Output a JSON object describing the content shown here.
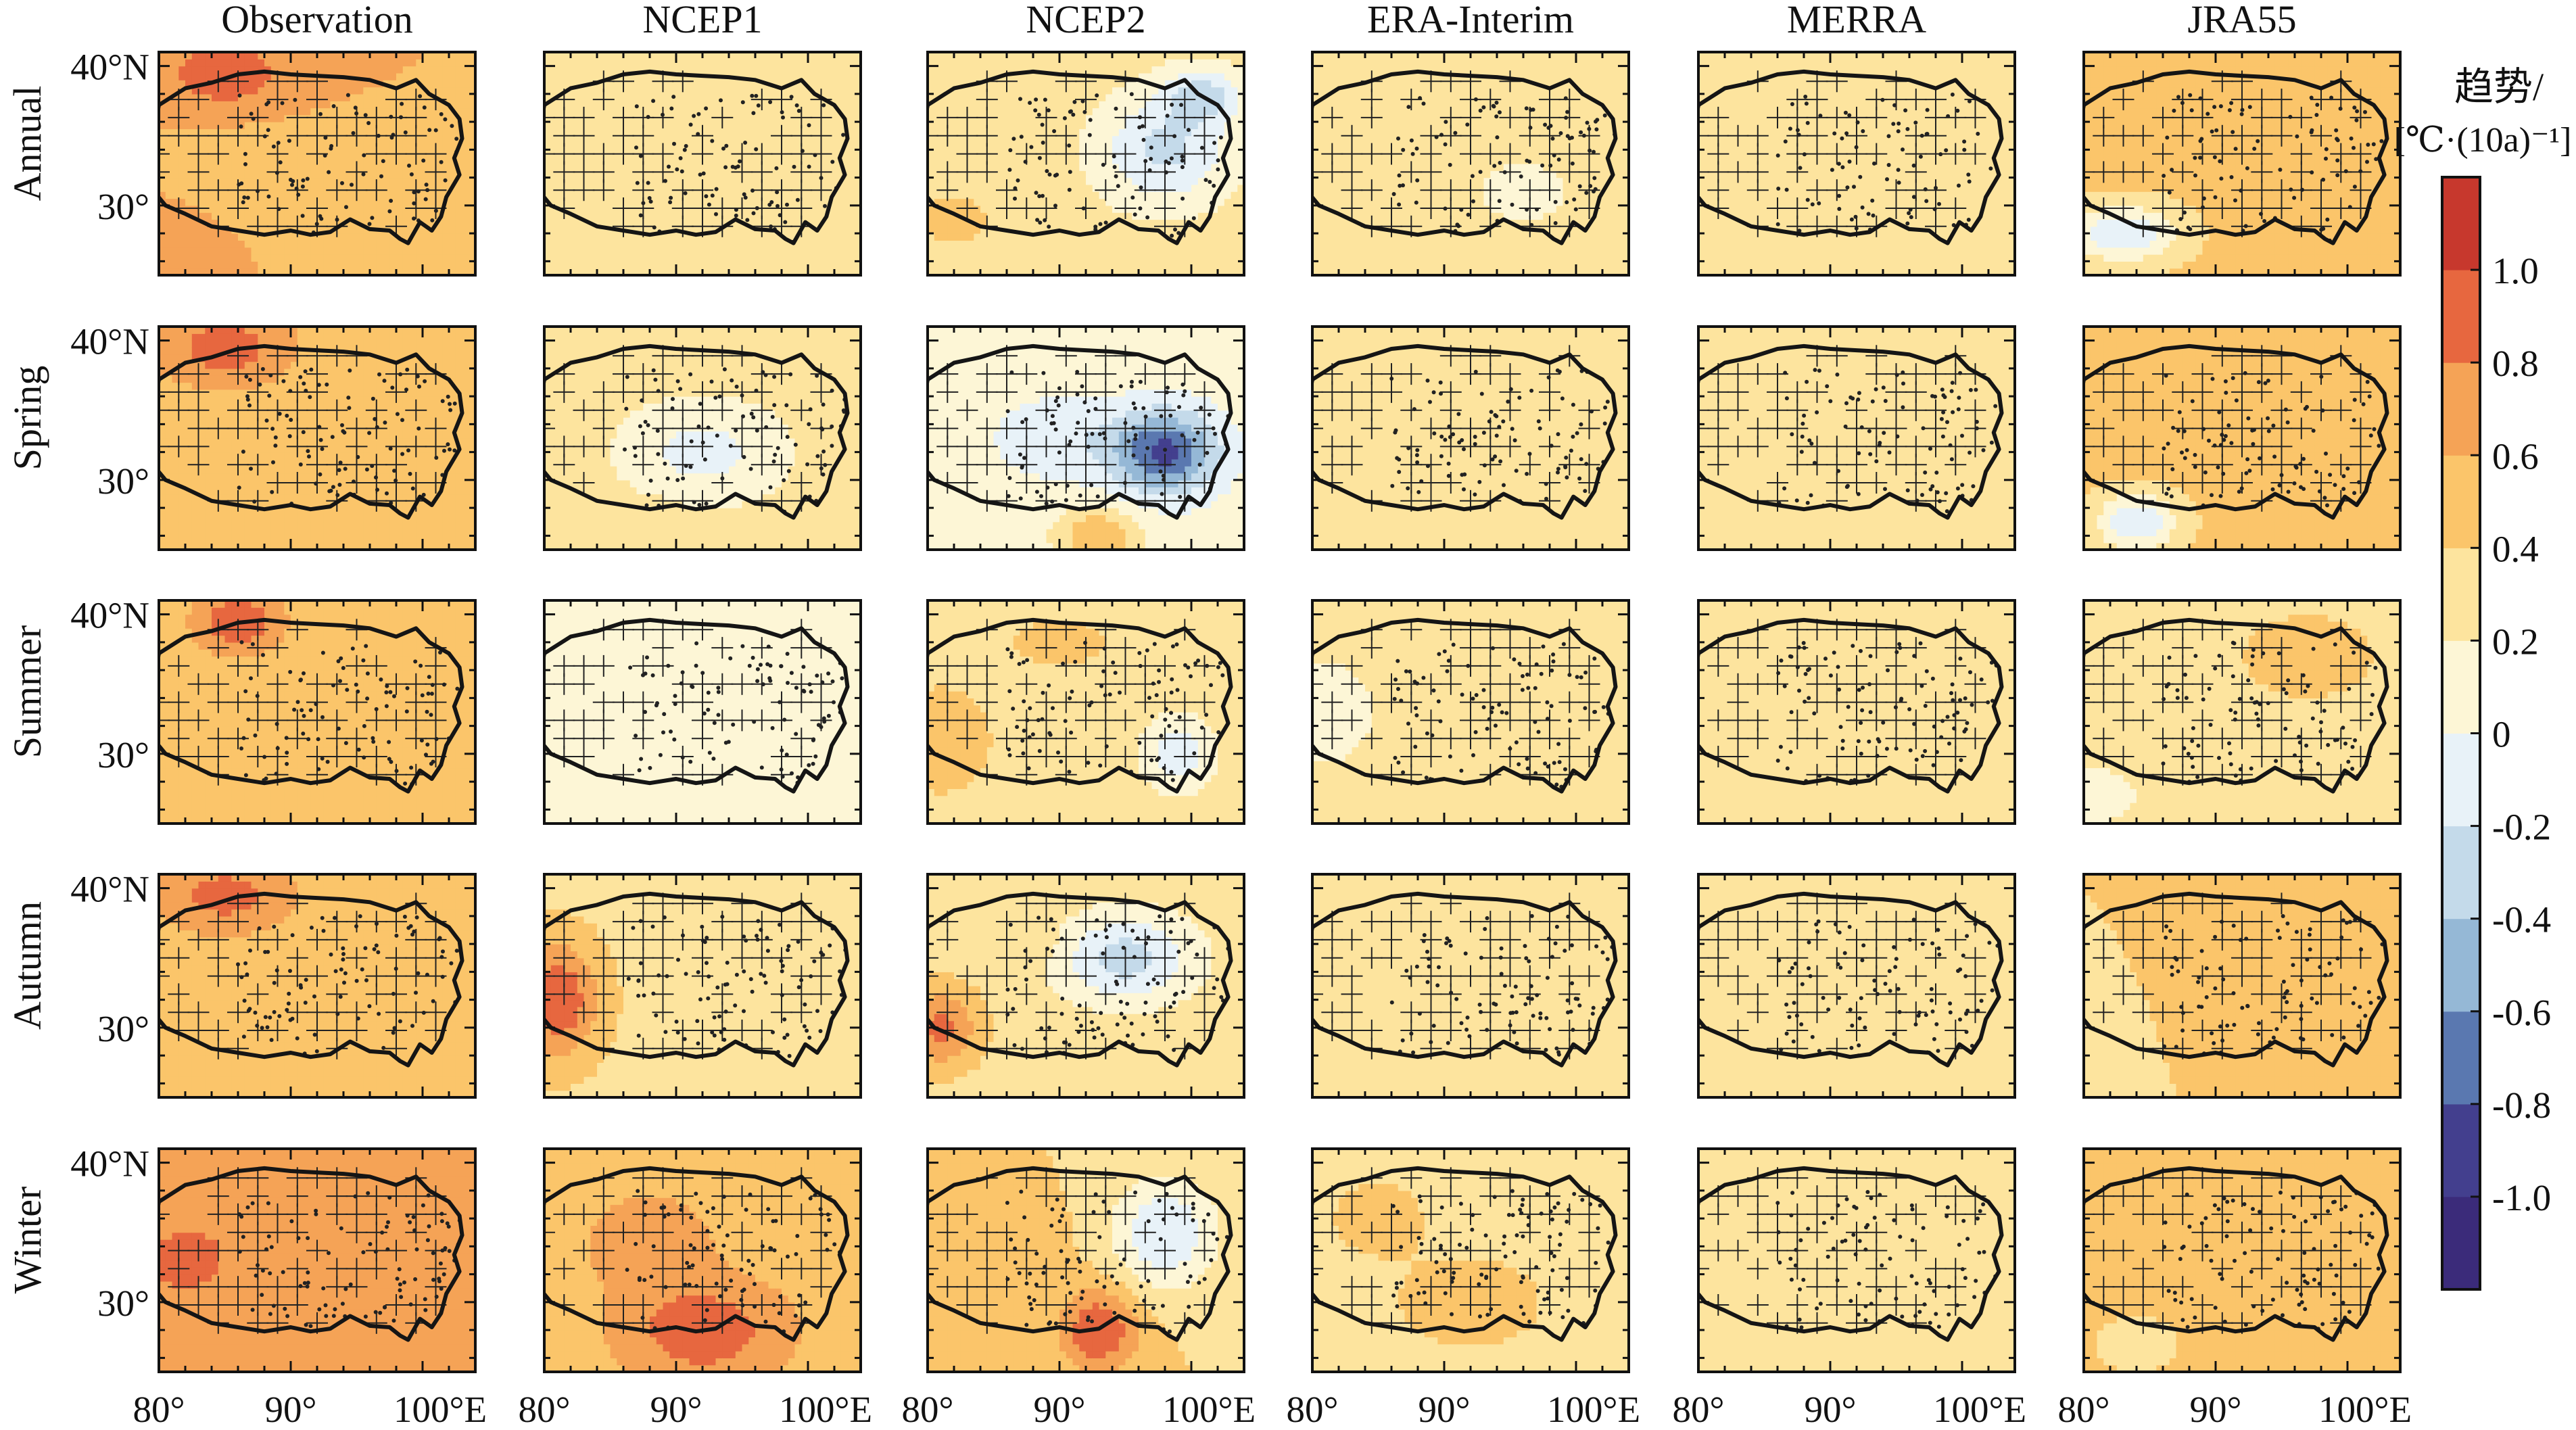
{
  "chart_data": {
    "type": "heatmap",
    "columns": [
      "Observation",
      "NCEP1",
      "NCEP2",
      "ERA-Interim",
      "MERRA",
      "JRA55"
    ],
    "rows": [
      "Annual",
      "Spring",
      "Summer",
      "Autumn",
      "Winter"
    ],
    "x_tick_labels": [
      "80°",
      "90°",
      "100°E"
    ],
    "x_ticks": [
      80,
      90,
      100
    ],
    "y_tick_labels": [
      "40°N",
      "30°"
    ],
    "y_ticks": [
      40,
      30
    ],
    "xlim": [
      80,
      104
    ],
    "ylim": [
      25,
      41
    ],
    "colorbar": {
      "title_line1": "趋势/",
      "title_line2": "[℃·(10a)⁻¹]",
      "tick_labels": [
        "1.0",
        "0.8",
        "0.6",
        "0.4",
        "0.2",
        "0",
        "-0.2",
        "-0.4",
        "-0.6",
        "-0.8",
        "-1.0"
      ],
      "ticks": [
        1.0,
        0.8,
        0.6,
        0.4,
        0.2,
        0,
        -0.2,
        -0.4,
        -0.6,
        -0.8,
        -1.0
      ],
      "range": [
        -1.2,
        1.2
      ],
      "colors": [
        "#3b2b7a",
        "#433f8e",
        "#5a78b0",
        "#95b8d6",
        "#c4daea",
        "#e8f2f8",
        "#fdf6d6",
        "#fde49e",
        "#fbc56a",
        "#f5a356",
        "#e7673f",
        "#c7382d"
      ]
    },
    "panels": [
      [
        {
          "base": 0.6,
          "blobs": [
            [
              85,
              39.5,
              1.0,
              4,
              2.2
            ],
            [
              88,
              33,
              0.55,
              5,
              3
            ],
            [
              80,
              27,
              0.7,
              3,
              2
            ]
          ]
        },
        {
          "base": 0.3,
          "blobs": [
            [
              98,
              34,
              0.2,
              4,
              3
            ],
            [
              83,
              33,
              0.4,
              3,
              2
            ]
          ]
        },
        {
          "base": 0.3,
          "blobs": [
            [
              98,
              34,
              -0.25,
              5,
              4
            ],
            [
              101,
              38,
              -0.2,
              3,
              2
            ],
            [
              82,
              29,
              0.5,
              3,
              2
            ]
          ]
        },
        {
          "base": 0.3,
          "blobs": [
            [
              96,
              31,
              0.15,
              5,
              3
            ],
            [
              84,
              36,
              0.35,
              4,
              3
            ]
          ]
        },
        {
          "base": 0.35,
          "blobs": [
            [
              96,
              32,
              0.2,
              4,
              3
            ],
            [
              83,
              36,
              0.35,
              4,
              3
            ]
          ]
        },
        {
          "base": 0.45,
          "blobs": [
            [
              83,
              28,
              -0.2,
              4,
              2
            ],
            [
              97,
              37,
              0.55,
              5,
              3
            ]
          ]
        }
      ],
      [
        {
          "base": 0.55,
          "blobs": [
            [
              85,
              39.5,
              0.95,
              4,
              2.2
            ],
            [
              88,
              33,
              0.5,
              5,
              3
            ],
            [
              80,
              27,
              0.6,
              3,
              2
            ]
          ]
        },
        {
          "base": 0.25,
          "blobs": [
            [
              92,
              32,
              -0.1,
              5,
              3
            ],
            [
              88,
              26,
              0.4,
              3,
              2
            ]
          ]
        },
        {
          "base": 0.1,
          "blobs": [
            [
              98,
              32,
              -0.85,
              4,
              3
            ],
            [
              90,
              33,
              -0.15,
              5,
              3
            ],
            [
              93,
              26,
              0.6,
              3,
              2
            ]
          ]
        },
        {
          "base": 0.3,
          "blobs": [
            [
              92,
              33,
              0.25,
              5,
              3
            ]
          ]
        },
        {
          "base": 0.25,
          "blobs": [
            [
              90,
              31,
              0.2,
              5,
              3
            ],
            [
              98,
              38,
              0.3,
              4,
              2
            ]
          ]
        },
        {
          "base": 0.45,
          "blobs": [
            [
              84,
              27,
              -0.2,
              3,
              2
            ],
            [
              97,
              37,
              0.6,
              5,
              3
            ]
          ]
        }
      ],
      [
        {
          "base": 0.5,
          "blobs": [
            [
              86,
              39.5,
              1.0,
              3,
              2
            ],
            [
              88,
              33,
              0.5,
              5,
              3
            ],
            [
              82,
              27,
              0.6,
              3,
              2
            ]
          ]
        },
        {
          "base": 0.2,
          "blobs": [
            [
              82,
              33,
              0.05,
              3,
              3
            ],
            [
              98,
              30,
              0.1,
              3,
              3
            ]
          ]
        },
        {
          "base": 0.35,
          "blobs": [
            [
              81,
              31,
              0.6,
              3,
              3
            ],
            [
              99,
              30,
              -0.1,
              3,
              3
            ],
            [
              90,
              38,
              0.45,
              4,
              2
            ]
          ]
        },
        {
          "base": 0.25,
          "blobs": [
            [
              81,
              33,
              0.05,
              3,
              3
            ],
            [
              95,
              36,
              0.35,
              4,
              3
            ]
          ]
        },
        {
          "base": 0.25,
          "blobs": [
            [
              93,
              34,
              0.25,
              5,
              3
            ]
          ]
        },
        {
          "base": 0.3,
          "blobs": [
            [
              97,
              37,
              0.55,
              5,
              3
            ],
            [
              81,
              27,
              0.05,
              3,
              2
            ]
          ]
        }
      ],
      [
        {
          "base": 0.55,
          "blobs": [
            [
              85,
              39.5,
              0.9,
              4,
              2.2
            ],
            [
              88,
              33,
              0.5,
              5,
              3
            ]
          ]
        },
        {
          "base": 0.35,
          "blobs": [
            [
              81,
              32,
              1.0,
              3,
              4
            ],
            [
              98,
              36,
              0.2,
              4,
              3
            ]
          ]
        },
        {
          "base": 0.3,
          "blobs": [
            [
              95,
              35,
              -0.3,
              5,
              3
            ],
            [
              81,
              30,
              0.85,
              3,
              3
            ],
            [
              88,
              36,
              0.4,
              3,
              2
            ]
          ]
        },
        {
          "base": 0.25,
          "blobs": [
            [
              92,
              33,
              0.35,
              5,
              3
            ]
          ]
        },
        {
          "base": 0.25,
          "blobs": [
            [
              92,
              33,
              0.3,
              5,
              3
            ]
          ]
        },
        {
          "base": 0.4,
          "blobs": [
            [
              90,
              33,
              0.45,
              6,
              3
            ],
            [
              81,
              31,
              0.3,
              3,
              3
            ]
          ]
        }
      ],
      [
        {
          "base": 0.6,
          "blobs": [
            [
              82,
              33,
              0.9,
              4,
              3
            ],
            [
              90,
              35,
              0.75,
              4,
              2
            ],
            [
              86,
              28,
              0.7,
              4,
              2
            ]
          ]
        },
        {
          "base": 0.55,
          "blobs": [
            [
              92,
              28,
              1.0,
              5,
              3
            ],
            [
              88,
              34,
              0.75,
              4,
              3
            ]
          ]
        },
        {
          "base": 0.4,
          "blobs": [
            [
              98,
              35,
              -0.2,
              4,
              4
            ],
            [
              93,
              28,
              1.0,
              3,
              3
            ],
            [
              86,
              34,
              0.55,
              4,
              3
            ]
          ]
        },
        {
          "base": 0.35,
          "blobs": [
            [
              92,
              30,
              0.5,
              5,
              3
            ],
            [
              85,
              36,
              0.45,
              4,
              3
            ]
          ]
        },
        {
          "base": 0.3,
          "blobs": [
            [
              90,
              30,
              0.4,
              5,
              3
            ],
            [
              97,
              37,
              0.35,
              4,
              2
            ]
          ]
        },
        {
          "base": 0.5,
          "blobs": [
            [
              92,
              32,
              0.55,
              5,
              3
            ],
            [
              84,
              27,
              0.2,
              3,
              2
            ]
          ]
        }
      ]
    ]
  }
}
